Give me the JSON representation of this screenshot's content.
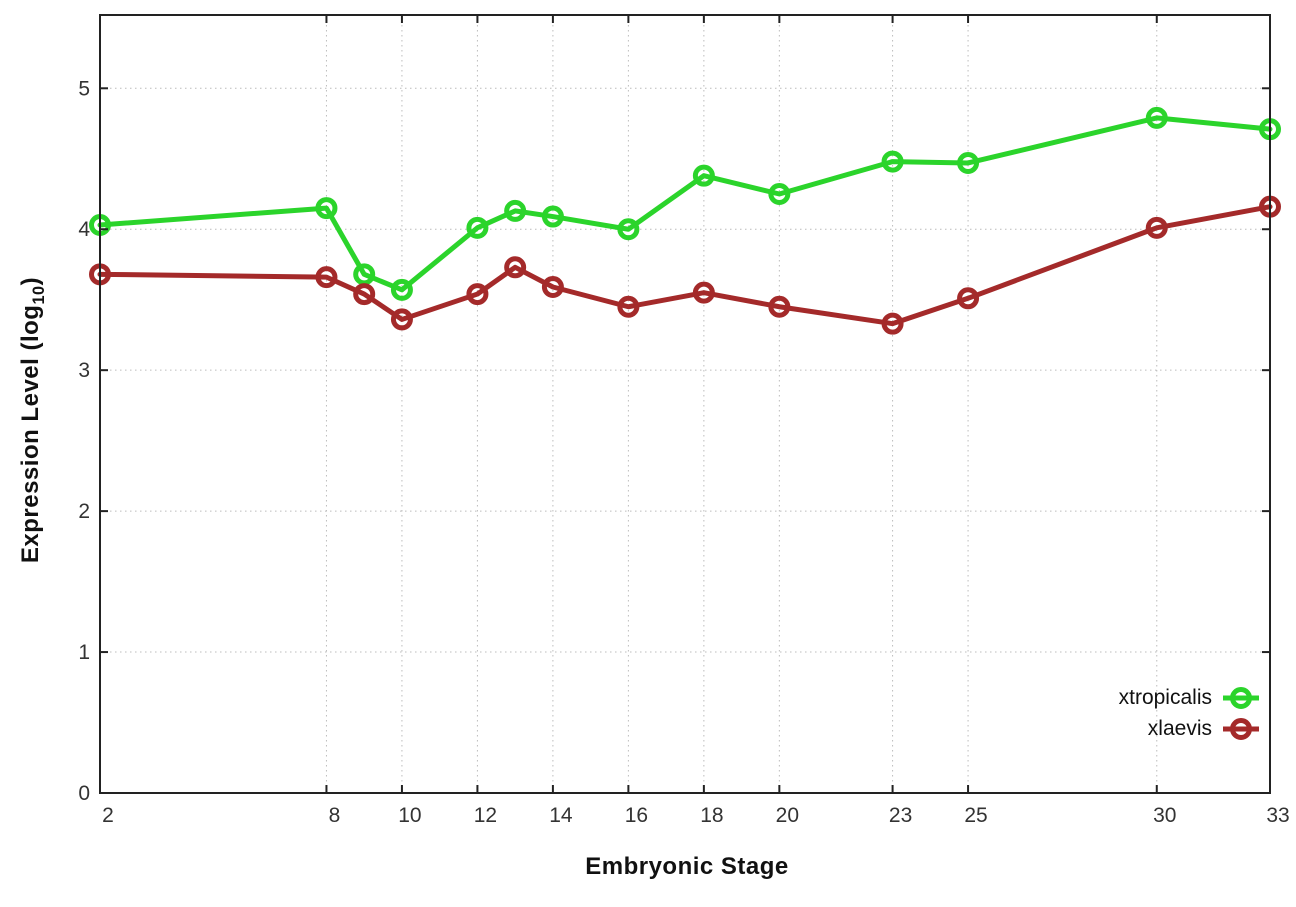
{
  "chart_data": {
    "type": "line",
    "title": "",
    "xlabel": "Embryonic Stage",
    "ylabel": "Expression Level (log10)",
    "ylabel_parts": {
      "pre": "Expression Level (log",
      "sub": "10",
      "post": ")"
    },
    "xlim": [
      2,
      33
    ],
    "ylim": [
      0,
      5.52
    ],
    "x_ticks": [
      2,
      8,
      10,
      12,
      14,
      16,
      18,
      20,
      23,
      25,
      30,
      33
    ],
    "y_ticks": [
      0,
      1,
      2,
      3,
      4,
      5
    ],
    "grid": true,
    "legend_position": "inside-bottom-right",
    "x": [
      2,
      8,
      9,
      10,
      12,
      13,
      14,
      16,
      18,
      20,
      23,
      25,
      30,
      33
    ],
    "series": [
      {
        "name": "xtropicalis",
        "color": "#2bd42b",
        "values": [
          4.03,
          4.15,
          3.68,
          3.57,
          4.01,
          4.13,
          4.09,
          4.0,
          4.38,
          4.25,
          4.48,
          4.47,
          4.79,
          4.71
        ]
      },
      {
        "name": "xlaevis",
        "color": "#a42a2a",
        "values": [
          3.68,
          3.66,
          3.54,
          3.36,
          3.54,
          3.73,
          3.59,
          3.45,
          3.55,
          3.45,
          3.33,
          3.51,
          4.01,
          4.16
        ]
      }
    ]
  },
  "colors": {
    "background": "#ffffff",
    "grid": "#bcbcbc",
    "border": "#222222",
    "tick_label": "#333333",
    "axis_label": "#111111"
  }
}
